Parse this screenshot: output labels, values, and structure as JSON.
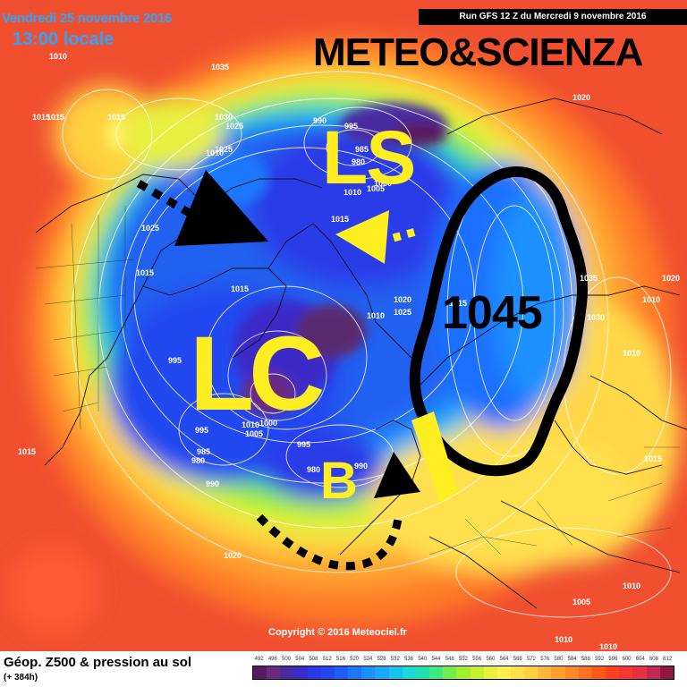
{
  "header": {
    "date": "Vendredi 25 novembre 2016",
    "local_time": "13:00 locale",
    "run_info": "Run GFS 12 Z du Mercredi 9 novembre 2016",
    "brand": "METEO&SCIENZA"
  },
  "annotations": {
    "ls": "LS",
    "lc": "LC",
    "b": "B",
    "high_value": "1045"
  },
  "isobar_labels": [
    "1010",
    "1035",
    "1015",
    "1015",
    "1030",
    "1025",
    "1010",
    "1025",
    "990",
    "995",
    "985",
    "980",
    "1000",
    "1005",
    "1010",
    "1015",
    "1025",
    "1015",
    "1015",
    "1020",
    "1010",
    "1025",
    "1015",
    "1035",
    "1030",
    "1020",
    "1010",
    "995",
    "995",
    "985",
    "980",
    "990",
    "1000",
    "1010",
    "1005",
    "995",
    "980",
    "990",
    "1020",
    "1015",
    "1010",
    "1020",
    "1010",
    "1005",
    "1010",
    "1015",
    "1015",
    "1010"
  ],
  "copyright": "Copyright © 2016 Meteociel.fr",
  "footer": {
    "title": "Géop. Z500 & pression au sol",
    "subtitle": "(+ 384h)"
  },
  "legend": {
    "labels": [
      "492",
      "496",
      "500",
      "504",
      "508",
      "512",
      "516",
      "520",
      "524",
      "528",
      "532",
      "536",
      "540",
      "544",
      "548",
      "552",
      "556",
      "560",
      "564",
      "568",
      "572",
      "576",
      "580",
      "584",
      "588",
      "592",
      "596",
      "600",
      "604",
      "608",
      "612"
    ],
    "colors": [
      "#5a1a5e",
      "#6a2a80",
      "#4a2aa0",
      "#3a2ac8",
      "#2a3ae8",
      "#2048f0",
      "#1a60f8",
      "#1a78ff",
      "#1a90ff",
      "#1aa8ff",
      "#18c0f0",
      "#18d8d8",
      "#20e0b0",
      "#40e880",
      "#70f050",
      "#a0f030",
      "#c8f030",
      "#e8f040",
      "#fff050",
      "#ffe048",
      "#ffd040",
      "#ffb838",
      "#ffa030",
      "#ff8828",
      "#ff7020",
      "#ff5818",
      "#ff4020",
      "#f83830",
      "#e83040",
      "#c02850",
      "#901840"
    ]
  },
  "colors": {
    "header_text": "#2aa6ff",
    "annotation_yellow": "#ffee22",
    "annotation_black": "#000000"
  }
}
